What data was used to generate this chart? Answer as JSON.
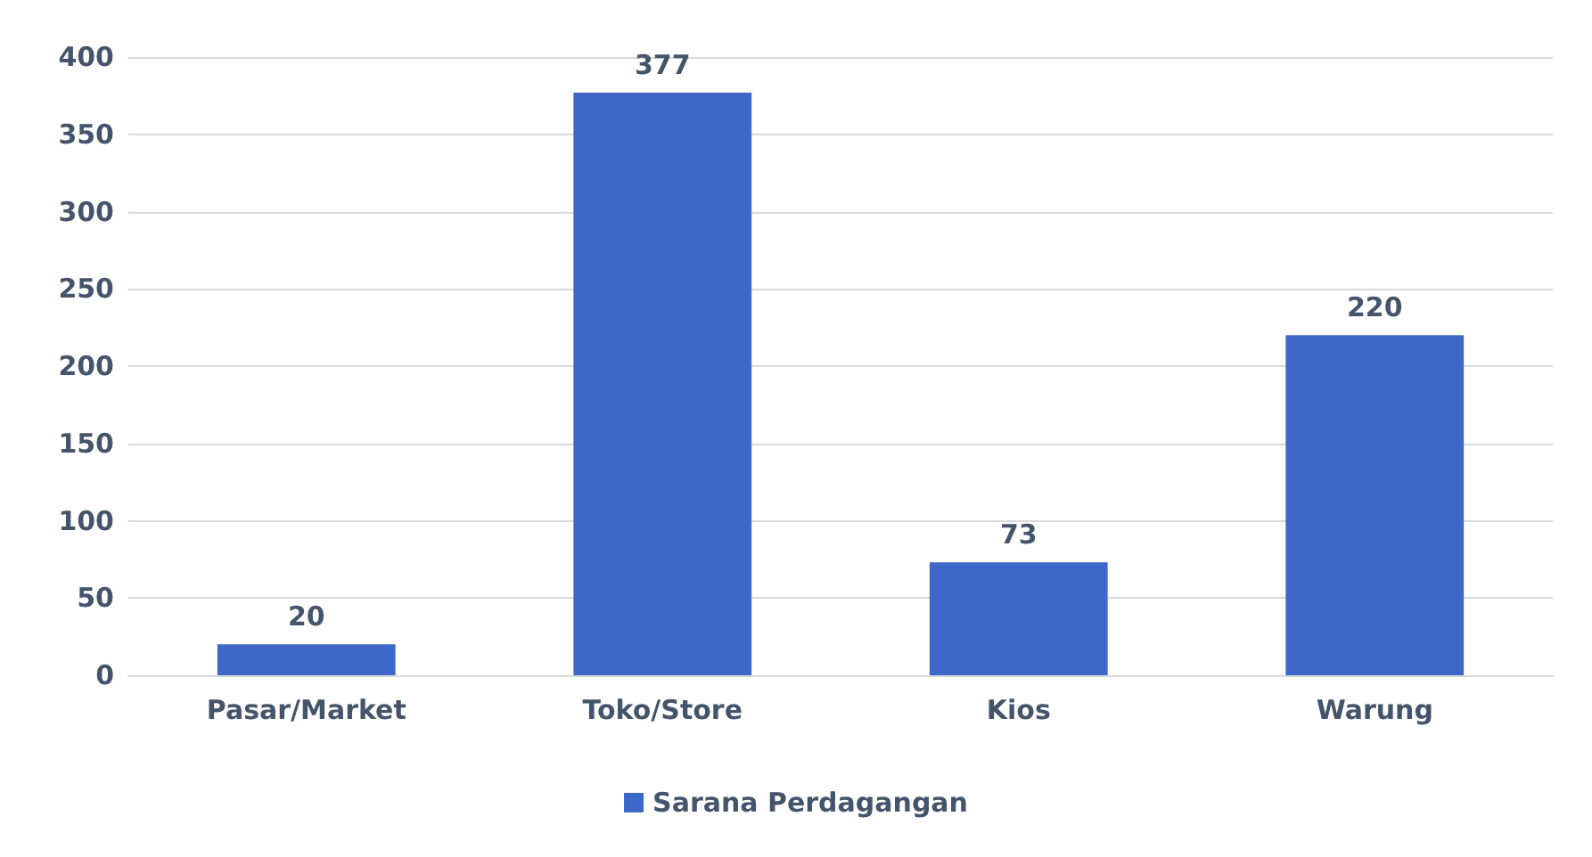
{
  "chart_data": {
    "type": "bar",
    "categories": [
      "Pasar/Market",
      "Toko/Store",
      "Kios",
      "Warung"
    ],
    "series": [
      {
        "name": "Sarana Perdagangan",
        "color": "#3d67c8",
        "values": [
          20,
          377,
          73,
          220
        ]
      }
    ],
    "ylim": [
      0,
      400
    ],
    "yticks": [
      0,
      50,
      100,
      150,
      200,
      250,
      300,
      350,
      400
    ],
    "grid": "y",
    "legend": "bottom",
    "data_labels": true
  }
}
